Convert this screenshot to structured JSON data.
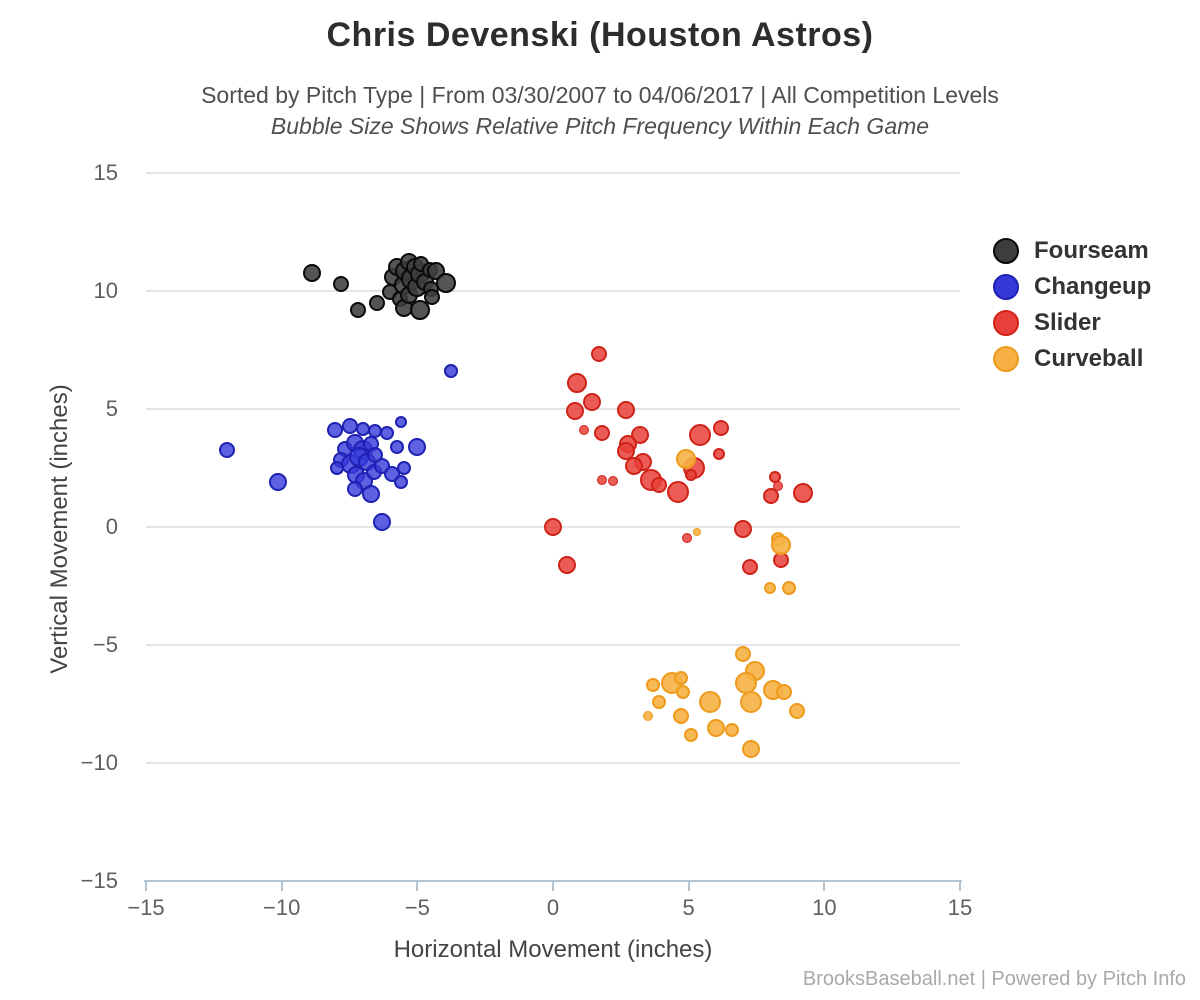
{
  "header": {
    "title": "Chris Devenski (Houston Astros)",
    "subtitle": "Sorted by Pitch Type | From 03/30/2007 to 04/06/2017 | All Competition Levels",
    "subtitle2": "Bubble Size Shows Relative Pitch Frequency Within Each Game"
  },
  "footer": {
    "credit": "BrooksBaseball.net | Powered by Pitch Info"
  },
  "chart_data": {
    "type": "scatter",
    "title": "Chris Devenski (Houston Astros)",
    "subtitle": "Sorted by Pitch Type | From 03/30/2007 to 04/06/2017 | All Competition Levels",
    "note": "Bubble Size Shows Relative Pitch Frequency Within Each Game",
    "xlabel": "Horizontal Movement (inches)",
    "ylabel": "Vertical Movement (inches)",
    "xlim": [
      -15,
      15
    ],
    "ylim": [
      -15,
      15
    ],
    "xticks": [
      -15,
      -10,
      -5,
      0,
      5,
      10,
      15
    ],
    "xtick_labels": [
      "−15",
      "−10",
      "−5",
      "0",
      "5",
      "10",
      "15"
    ],
    "yticks": [
      15,
      10,
      5,
      0,
      -5,
      -10,
      -15
    ],
    "ytick_labels": [
      "15",
      "10",
      "5",
      "0",
      "−5",
      "−10",
      "−15"
    ],
    "grid_y": [
      15,
      10,
      5,
      0,
      -5,
      -10
    ],
    "grid_on": true,
    "legend_position": "right",
    "colors": {
      "gridline": "#e4e4e4",
      "axis_line": "#b4c5d2",
      "fourseam": "#3d3d3d",
      "changeup": "#3639d8",
      "slider": "#e8403a",
      "curveball": "#f6b044"
    },
    "series": [
      {
        "name": "Fourseam",
        "fill": "#3d3d3d",
        "stroke": "#0a0a0a",
        "alpha": 0.88,
        "points": [
          [
            -8.9,
            10.75,
            9
          ],
          [
            -7.8,
            10.3,
            8
          ],
          [
            -7.2,
            9.2,
            8
          ],
          [
            -6.5,
            9.5,
            8
          ],
          [
            -6.0,
            9.95,
            8
          ],
          [
            -5.9,
            10.6,
            9
          ],
          [
            -5.75,
            11.0,
            9
          ],
          [
            -5.65,
            9.65,
            8
          ],
          [
            -5.5,
            10.25,
            10
          ],
          [
            -5.5,
            9.3,
            9
          ],
          [
            -5.45,
            10.85,
            10
          ],
          [
            -5.3,
            11.25,
            9
          ],
          [
            -5.3,
            9.85,
            9
          ],
          [
            -5.2,
            10.5,
            11
          ],
          [
            -5.1,
            11.0,
            9
          ],
          [
            -5.0,
            10.15,
            10
          ],
          [
            -4.9,
            10.7,
            10
          ],
          [
            -4.9,
            9.2,
            10
          ],
          [
            -4.85,
            11.15,
            8
          ],
          [
            -4.7,
            10.4,
            9
          ],
          [
            -4.55,
            10.9,
            8
          ],
          [
            -4.5,
            10.1,
            8
          ],
          [
            -4.45,
            9.75,
            8
          ],
          [
            -4.3,
            10.85,
            9
          ],
          [
            -3.95,
            10.35,
            10
          ]
        ]
      },
      {
        "name": "Changeup",
        "fill": "#3639d8",
        "stroke": "#1f21b2",
        "alpha": 0.8,
        "points": [
          [
            -12.0,
            3.25,
            8
          ],
          [
            -10.15,
            1.9,
            9
          ],
          [
            -8.05,
            4.1,
            8
          ],
          [
            -7.5,
            4.3,
            8
          ],
          [
            -7.0,
            4.15,
            7
          ],
          [
            -6.55,
            4.05,
            7
          ],
          [
            -6.1,
            4.0,
            7
          ],
          [
            -5.6,
            4.45,
            6
          ],
          [
            -5.75,
            3.4,
            7
          ],
          [
            -5.0,
            3.4,
            9
          ],
          [
            -7.65,
            3.3,
            8
          ],
          [
            -7.3,
            3.55,
            9
          ],
          [
            -7.0,
            3.25,
            10
          ],
          [
            -6.7,
            3.5,
            8
          ],
          [
            -7.8,
            2.85,
            8
          ],
          [
            -7.45,
            2.65,
            10
          ],
          [
            -7.15,
            2.95,
            10
          ],
          [
            -6.85,
            2.75,
            9
          ],
          [
            -6.55,
            3.05,
            8
          ],
          [
            -7.95,
            2.5,
            7
          ],
          [
            -7.25,
            2.2,
            9
          ],
          [
            -6.95,
            1.95,
            9
          ],
          [
            -6.6,
            2.35,
            8
          ],
          [
            -6.3,
            2.6,
            8
          ],
          [
            -5.95,
            2.25,
            8
          ],
          [
            -5.5,
            2.5,
            7
          ],
          [
            -5.6,
            1.9,
            7
          ],
          [
            -7.3,
            1.6,
            8
          ],
          [
            -6.7,
            1.4,
            9
          ],
          [
            -6.3,
            0.2,
            9
          ],
          [
            -3.75,
            6.6,
            7
          ]
        ]
      },
      {
        "name": "Slider",
        "fill": "#e8403a",
        "stroke": "#d02318",
        "alpha": 0.85,
        "points": [
          [
            1.7,
            7.35,
            8
          ],
          [
            0.9,
            6.1,
            10
          ],
          [
            1.45,
            5.3,
            9
          ],
          [
            0.8,
            4.9,
            9
          ],
          [
            2.7,
            4.95,
            9
          ],
          [
            1.15,
            4.1,
            5
          ],
          [
            1.8,
            4.0,
            8
          ],
          [
            3.2,
            3.9,
            9
          ],
          [
            2.75,
            3.5,
            9
          ],
          [
            2.7,
            3.2,
            9
          ],
          [
            3.3,
            2.75,
            9
          ],
          [
            3.0,
            2.6,
            9
          ],
          [
            1.8,
            2.0,
            5
          ],
          [
            2.2,
            1.95,
            5
          ],
          [
            3.6,
            2.0,
            11
          ],
          [
            3.9,
            1.8,
            8
          ],
          [
            4.6,
            1.5,
            11
          ],
          [
            5.4,
            3.9,
            11
          ],
          [
            6.2,
            4.2,
            8
          ],
          [
            6.1,
            3.1,
            6
          ],
          [
            5.2,
            2.5,
            11
          ],
          [
            5.1,
            2.2,
            6
          ],
          [
            8.2,
            2.1,
            6
          ],
          [
            8.3,
            1.75,
            5
          ],
          [
            8.05,
            1.3,
            8
          ],
          [
            9.2,
            1.45,
            10
          ],
          [
            0.0,
            0.0,
            9
          ],
          [
            0.5,
            -1.6,
            9
          ],
          [
            4.95,
            -0.45,
            5
          ],
          [
            7.0,
            -0.1,
            9
          ],
          [
            8.4,
            -1.4,
            8
          ],
          [
            7.25,
            -1.7,
            8
          ]
        ]
      },
      {
        "name": "Curveball",
        "fill": "#f6b044",
        "stroke": "#ee9b1d",
        "alpha": 0.9,
        "points": [
          [
            4.9,
            2.9,
            10
          ],
          [
            5.3,
            -0.2,
            4
          ],
          [
            8.3,
            -0.5,
            7
          ],
          [
            8.4,
            -0.75,
            10
          ],
          [
            8.0,
            -2.6,
            6
          ],
          [
            8.7,
            -2.6,
            7
          ],
          [
            7.0,
            -5.4,
            8
          ],
          [
            7.45,
            -6.1,
            10
          ],
          [
            7.1,
            -6.6,
            11
          ],
          [
            4.4,
            -6.6,
            11
          ],
          [
            3.7,
            -6.7,
            7
          ],
          [
            4.7,
            -6.4,
            7
          ],
          [
            4.8,
            -7.0,
            7
          ],
          [
            3.9,
            -7.4,
            7
          ],
          [
            3.5,
            -8.0,
            5
          ],
          [
            4.7,
            -8.0,
            8
          ],
          [
            5.8,
            -7.4,
            11
          ],
          [
            5.1,
            -8.8,
            7
          ],
          [
            6.0,
            -8.5,
            9
          ],
          [
            6.6,
            -8.6,
            7
          ],
          [
            7.3,
            -7.4,
            11
          ],
          [
            8.1,
            -6.9,
            10
          ],
          [
            8.5,
            -7.0,
            8
          ],
          [
            9.0,
            -7.8,
            8
          ],
          [
            7.3,
            -9.4,
            9
          ]
        ]
      }
    ]
  }
}
